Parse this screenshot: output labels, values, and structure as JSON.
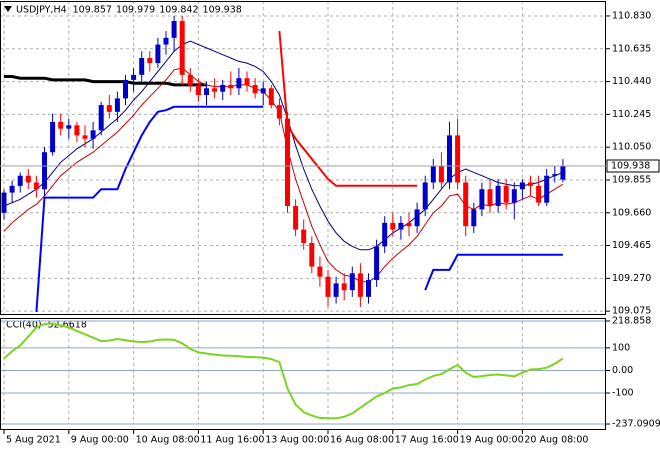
{
  "chart_data": {
    "type": "candlestick",
    "title": "USDJPY,H4",
    "categories": [
      "5 Aug 2021",
      null,
      null,
      null,
      null,
      null,
      null,
      null,
      "9 Aug 00:00",
      null,
      null,
      null,
      null,
      null,
      null,
      null,
      "10 Aug 08:00",
      null,
      null,
      null,
      null,
      null,
      null,
      null,
      "11 Aug 16:00",
      null,
      null,
      null,
      null,
      null,
      null,
      null,
      "13 Aug 00:00",
      null,
      null,
      null,
      null,
      null,
      null,
      null,
      "16 Aug 08:00",
      null,
      null,
      null,
      null,
      null,
      null,
      null,
      "17 Aug 16:00",
      null,
      null,
      null,
      null,
      null,
      null,
      null,
      "19 Aug 00:00",
      null,
      null,
      null,
      null,
      null,
      null,
      null,
      "20 Aug 08:00",
      null,
      null,
      null,
      null,
      null
    ],
    "ohlc": [
      [
        109.66,
        109.8,
        109.62,
        109.78
      ],
      [
        109.78,
        109.85,
        109.72,
        109.82
      ],
      [
        109.82,
        109.9,
        109.78,
        109.88
      ],
      [
        109.88,
        109.92,
        109.8,
        109.84
      ],
      [
        109.84,
        109.88,
        109.75,
        109.8
      ],
      [
        109.8,
        110.05,
        109.76,
        110.02
      ],
      [
        110.02,
        110.25,
        110.0,
        110.2
      ],
      [
        110.2,
        110.25,
        110.12,
        110.16
      ],
      [
        110.16,
        110.22,
        110.1,
        110.18
      ],
      [
        110.18,
        110.2,
        110.08,
        110.12
      ],
      [
        110.12,
        110.18,
        110.05,
        110.1
      ],
      [
        110.1,
        110.2,
        110.04,
        110.15
      ],
      [
        110.15,
        110.32,
        110.12,
        110.3
      ],
      [
        110.3,
        110.36,
        110.22,
        110.26
      ],
      [
        110.26,
        110.38,
        110.2,
        110.34
      ],
      [
        110.34,
        110.48,
        110.3,
        110.45
      ],
      [
        110.45,
        110.52,
        110.38,
        110.48
      ],
      [
        110.48,
        110.62,
        110.44,
        110.58
      ],
      [
        110.58,
        110.62,
        110.5,
        110.55
      ],
      [
        110.55,
        110.7,
        110.52,
        110.66
      ],
      [
        110.66,
        110.74,
        110.6,
        110.7
      ],
      [
        110.7,
        110.83,
        110.62,
        110.8
      ],
      [
        110.8,
        110.83,
        110.42,
        110.48
      ],
      [
        110.48,
        110.52,
        110.38,
        110.42
      ],
      [
        110.42,
        110.46,
        110.32,
        110.36
      ],
      [
        110.36,
        110.44,
        110.3,
        110.4
      ],
      [
        110.4,
        110.46,
        110.34,
        110.38
      ],
      [
        110.38,
        110.45,
        110.33,
        110.42
      ],
      [
        110.42,
        110.5,
        110.36,
        110.4
      ],
      [
        110.4,
        110.52,
        110.36,
        110.46
      ],
      [
        110.46,
        110.5,
        110.38,
        110.42
      ],
      [
        110.42,
        110.46,
        110.34,
        110.37
      ],
      [
        110.37,
        110.44,
        110.3,
        110.4
      ],
      [
        110.4,
        110.42,
        110.28,
        110.3
      ],
      [
        110.3,
        110.34,
        110.18,
        110.22
      ],
      [
        110.22,
        110.26,
        109.66,
        109.7
      ],
      [
        109.7,
        109.74,
        109.52,
        109.56
      ],
      [
        109.56,
        109.62,
        109.44,
        109.48
      ],
      [
        109.48,
        109.52,
        109.3,
        109.34
      ],
      [
        109.34,
        109.4,
        109.22,
        109.28
      ],
      [
        109.28,
        109.32,
        109.1,
        109.16
      ],
      [
        109.16,
        109.28,
        109.12,
        109.24
      ],
      [
        109.24,
        109.3,
        109.14,
        109.2
      ],
      [
        109.2,
        109.34,
        109.16,
        109.3
      ],
      [
        109.3,
        109.36,
        109.1,
        109.16
      ],
      [
        109.16,
        109.3,
        109.12,
        109.26
      ],
      [
        109.26,
        109.5,
        109.22,
        109.46
      ],
      [
        109.46,
        109.64,
        109.42,
        109.6
      ],
      [
        109.6,
        109.66,
        109.52,
        109.56
      ],
      [
        109.56,
        109.64,
        109.5,
        109.6
      ],
      [
        109.6,
        109.66,
        109.52,
        109.58
      ],
      [
        109.58,
        109.72,
        109.54,
        109.68
      ],
      [
        109.68,
        109.88,
        109.64,
        109.84
      ],
      [
        109.84,
        109.98,
        109.8,
        109.94
      ],
      [
        109.94,
        110.02,
        109.8,
        109.84
      ],
      [
        109.84,
        110.2,
        109.8,
        110.12
      ],
      [
        110.12,
        110.22,
        109.8,
        109.84
      ],
      [
        109.84,
        109.88,
        109.52,
        109.58
      ],
      [
        109.58,
        109.72,
        109.54,
        109.68
      ],
      [
        109.68,
        109.84,
        109.64,
        109.8
      ],
      [
        109.8,
        109.86,
        109.66,
        109.7
      ],
      [
        109.7,
        109.86,
        109.66,
        109.82
      ],
      [
        109.82,
        109.86,
        109.68,
        109.72
      ],
      [
        109.72,
        109.84,
        109.62,
        109.8
      ],
      [
        109.8,
        109.86,
        109.74,
        109.84
      ],
      [
        109.84,
        109.88,
        109.76,
        109.82
      ],
      [
        109.82,
        109.88,
        109.7,
        109.72
      ],
      [
        109.72,
        109.92,
        109.7,
        109.88
      ],
      [
        109.88,
        109.94,
        109.84,
        109.89
      ],
      [
        109.857,
        109.979,
        109.842,
        109.938
      ]
    ],
    "up_color": "#0000cd",
    "down_color": "#ff0000",
    "series": [
      {
        "color": "#000000",
        "width": 3,
        "values": [
          110.47,
          110.47,
          110.46,
          110.46,
          110.46,
          110.46,
          110.45,
          110.45,
          110.45,
          110.45,
          110.45,
          110.44,
          110.44,
          110.44,
          110.44,
          110.44,
          110.43,
          110.43,
          110.43,
          110.43,
          110.43,
          110.42,
          110.42,
          110.42,
          110.42,
          110.42,
          null,
          null,
          null,
          null,
          null,
          null,
          null,
          null,
          null,
          null,
          null,
          null,
          null,
          null,
          null,
          null,
          null,
          null,
          null,
          null,
          null,
          null,
          null,
          null,
          null,
          null,
          null,
          null,
          null,
          null,
          null,
          null,
          null,
          null,
          null,
          null,
          null,
          null,
          null,
          null,
          null,
          null,
          null,
          null
        ]
      },
      {
        "color": "#000080",
        "width": 1,
        "values": [
          109.7,
          109.72,
          109.74,
          109.77,
          109.8,
          109.84,
          109.9,
          109.96,
          110.0,
          110.04,
          110.07,
          110.1,
          110.14,
          110.18,
          110.22,
          110.27,
          110.33,
          110.38,
          110.44,
          110.5,
          110.56,
          110.62,
          110.66,
          110.68,
          110.66,
          110.64,
          110.62,
          110.6,
          110.58,
          110.56,
          110.55,
          110.53,
          110.5,
          110.44,
          110.36,
          110.22,
          110.06,
          109.92,
          109.8,
          109.7,
          109.61,
          109.54,
          109.49,
          109.46,
          109.44,
          109.44,
          109.46,
          109.5,
          109.54,
          109.57,
          109.6,
          109.64,
          109.68,
          109.74,
          109.8,
          109.86,
          109.9,
          109.92,
          109.9,
          109.88,
          109.86,
          109.84,
          109.83,
          109.82,
          109.82,
          109.83,
          109.84,
          109.86,
          109.88,
          109.9
        ]
      },
      {
        "color": "#cc0000",
        "width": 1,
        "values": [
          109.55,
          109.6,
          109.64,
          109.68,
          109.71,
          109.76,
          109.82,
          109.88,
          109.92,
          109.96,
          109.99,
          110.02,
          110.06,
          110.1,
          110.14,
          110.19,
          110.24,
          110.3,
          110.35,
          110.4,
          110.45,
          110.51,
          110.52,
          110.48,
          110.44,
          110.42,
          110.41,
          110.41,
          110.41,
          110.42,
          110.42,
          110.4,
          110.38,
          110.33,
          110.26,
          110.04,
          109.86,
          109.72,
          109.58,
          109.47,
          109.37,
          109.32,
          109.29,
          109.28,
          109.25,
          109.25,
          109.28,
          109.34,
          109.39,
          109.43,
          109.47,
          109.52,
          109.59,
          109.66,
          109.7,
          109.76,
          109.77,
          109.7,
          109.68,
          109.71,
          109.7,
          109.72,
          109.71,
          109.72,
          109.74,
          109.76,
          109.74,
          109.77,
          109.8,
          109.83
        ]
      },
      {
        "color": "#0000ff",
        "width": 2,
        "values": [
          null,
          null,
          null,
          null,
          109.07,
          109.75,
          109.75,
          109.75,
          109.75,
          109.75,
          109.75,
          109.75,
          109.8,
          109.8,
          109.8,
          109.92,
          110.02,
          110.12,
          110.2,
          110.26,
          110.27,
          110.29,
          110.29,
          110.29,
          110.29,
          110.29,
          110.29,
          110.29,
          110.29,
          110.29,
          110.29,
          110.29,
          110.29,
          null,
          null,
          null,
          null,
          null,
          null,
          null,
          null,
          null,
          null,
          null,
          null,
          null,
          null,
          null,
          null,
          null,
          null,
          null,
          109.2,
          109.32,
          109.32,
          109.32,
          109.41,
          109.41,
          109.41,
          109.41,
          109.41,
          109.41,
          109.41,
          109.41,
          109.41,
          109.41,
          109.41,
          109.41,
          109.41,
          109.41
        ]
      },
      {
        "color": "#ff0000",
        "width": 2,
        "values": [
          null,
          null,
          null,
          null,
          null,
          null,
          null,
          null,
          null,
          null,
          null,
          null,
          null,
          null,
          null,
          null,
          null,
          null,
          null,
          null,
          null,
          null,
          null,
          null,
          null,
          null,
          null,
          null,
          null,
          null,
          null,
          null,
          null,
          null,
          110.74,
          110.18,
          110.1,
          110.04,
          109.98,
          109.92,
          109.86,
          109.82,
          109.82,
          109.82,
          109.82,
          109.82,
          109.82,
          109.82,
          109.82,
          109.82,
          109.82,
          109.82,
          null,
          null,
          null,
          null,
          null,
          null,
          null,
          null,
          null,
          null,
          null,
          null,
          null,
          null,
          null,
          null,
          null,
          null
        ]
      }
    ],
    "ylim": [
      109.058,
      110.919
    ],
    "yticks": [
      {
        "value": 110.83,
        "label": "110.830"
      },
      110.635,
      {
        "value": 110.44,
        "label": "110.440"
      },
      110.245,
      {
        "value": 110.05,
        "label": "110.050"
      },
      109.855,
      {
        "value": 109.66,
        "label": "109.660"
      },
      109.465,
      {
        "value": 109.27,
        "label": "109.270"
      },
      109.075
    ],
    "grid": true,
    "indicator": {
      "title": "CCI(40)",
      "color": "#7cd320",
      "values": [
        53,
        85,
        110,
        150,
        190,
        205,
        208,
        200,
        190,
        175,
        160,
        145,
        130,
        132,
        139,
        134,
        128,
        126,
        128,
        135,
        137,
        135,
        120,
        95,
        80,
        75,
        70,
        66,
        65,
        63,
        60,
        58,
        57,
        50,
        37,
        -80,
        -151,
        -185,
        -200,
        -210,
        -212,
        -212,
        -205,
        -190,
        -165,
        -140,
        -115,
        -100,
        -80,
        -75,
        -65,
        -60,
        -40,
        -24,
        -16,
        5,
        24,
        -10,
        -29,
        -25,
        -20,
        -18,
        -22,
        -26,
        -10,
        4,
        6,
        12,
        30,
        52.6618
      ],
      "ylim": [
        -237.0909,
        218.858
      ],
      "yticks": [
        218.858,
        100,
        {
          "value": 0,
          "label": "0.00"
        },
        -100,
        -237.0909
      ]
    }
  }
}
